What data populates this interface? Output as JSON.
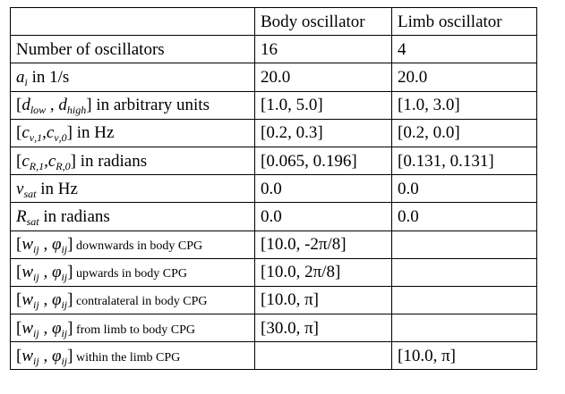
{
  "headers": [
    "",
    "Body oscillator",
    "Limb oscillator"
  ],
  "rows": [
    {
      "label": "Number of oscillators",
      "body": "16",
      "limb": "4"
    },
    {
      "sym": "a",
      "sub": "i",
      "tail": " in 1/s",
      "body": "20.0",
      "limb": "20.0"
    },
    {
      "lb": "[",
      "s1": "d",
      "sub1": "low",
      "sep": " , ",
      "s2": "d",
      "sub2": "high",
      "rb": "]",
      "tail": " in arbitrary units",
      "body": "[1.0, 5.0]",
      "limb": "[1.0, 3.0]"
    },
    {
      "lb": "[",
      "s1": "c",
      "sub1": "ν,1",
      "sep": ",",
      "s2": "c",
      "sub2": "ν,0",
      "rb": "]",
      "tail": " in Hz",
      "body": "[0.2, 0.3]",
      "limb": "[0.2, 0.0]"
    },
    {
      "lb": "[",
      "s1": "c",
      "sub1": "R,1",
      "sep": ",",
      "s2": "c",
      "sub2": "R,0",
      "rb": "]",
      "tail": " in radians",
      "body": "[0.065, 0.196]",
      "limb": "[0.131, 0.131]"
    },
    {
      "sym": "ν",
      "sub": "sat",
      "tail": " in Hz",
      "body": "0.0",
      "limb": "0.0"
    },
    {
      "sym": "R",
      "sub": "sat",
      "tail": " in radians",
      "body": "0.0",
      "limb": "0.0"
    },
    {
      "lb": "[",
      "s1": "w",
      "sub1": "ij",
      "sep": " , ",
      "s2": "φ",
      "sub2": "ij",
      "rb": "]",
      "tail": " downwards in body CPG",
      "body": "[10.0, -2π/8]",
      "limb": ""
    },
    {
      "lb": "[",
      "s1": "w",
      "sub1": "ij",
      "sep": " , ",
      "s2": "φ",
      "sub2": "ij",
      "rb": "]",
      "tail": " upwards in body CPG",
      "body": "[10.0, 2π/8]",
      "limb": ""
    },
    {
      "lb": "[",
      "s1": "w",
      "sub1": "ij",
      "sep": " , ",
      "s2": "φ",
      "sub2": "ij",
      "rb": "]",
      "tail": " contralateral in body CPG",
      "body": "[10.0, π]",
      "limb": ""
    },
    {
      "lb": "[",
      "s1": "w",
      "sub1": "ij",
      "sep": " , ",
      "s2": "φ",
      "sub2": "ij",
      "rb": "]",
      "tail": " from limb to body CPG",
      "body": "[30.0, π]",
      "limb": ""
    },
    {
      "lb": "[",
      "s1": "w",
      "sub1": "ij",
      "sep": " , ",
      "s2": "φ",
      "sub2": "ij",
      "rb": "]",
      "tail": " within the limb CPG",
      "body": "",
      "limb": "[10.0, π]"
    }
  ]
}
